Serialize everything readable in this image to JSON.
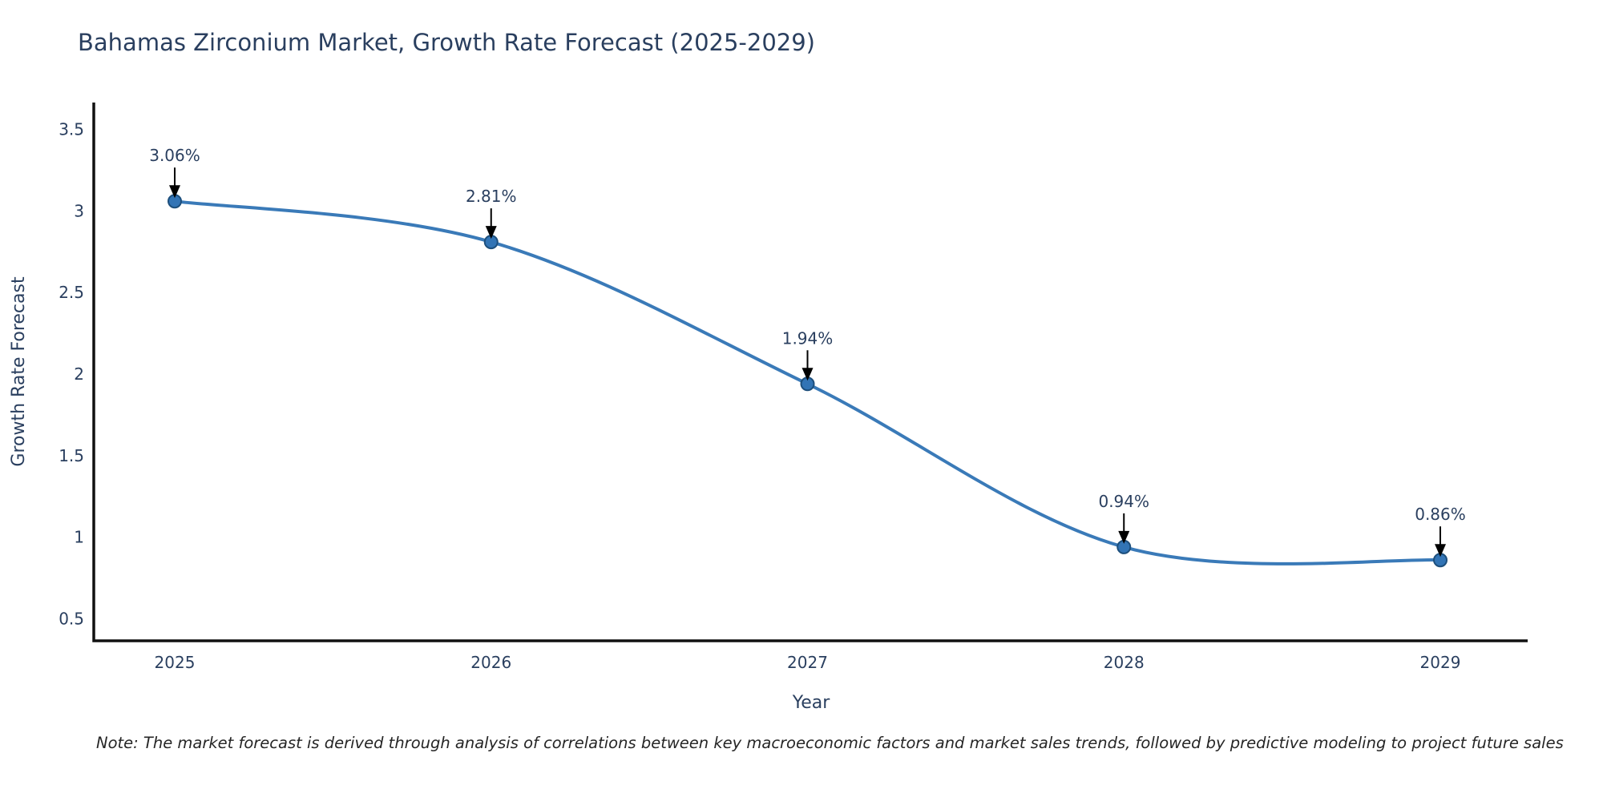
{
  "header": {
    "title": "Bahamas Zirconium Market, Growth Rate Forecast (2025-2029)"
  },
  "footer": {
    "note": "Note: The market forecast is derived through analysis of correlations between key macroeconomic factors and market sales trends, followed by predictive modeling to project future sales"
  },
  "chart_data": {
    "type": "line",
    "title": "Bahamas Zirconium Market, Growth Rate Forecast (2025-2029)",
    "xlabel": "Year",
    "ylabel": "Growth Rate Forecast",
    "x": [
      2025,
      2026,
      2027,
      2028,
      2029
    ],
    "xticklabels": [
      "2025",
      "2026",
      "2027",
      "2028",
      "2029"
    ],
    "values": [
      3.06,
      2.81,
      1.94,
      0.94,
      0.86
    ],
    "point_labels": [
      "3.06%",
      "2.81%",
      "1.94%",
      "0.94%",
      "0.86%"
    ],
    "series_name": "Growth Rate Forecast",
    "yticks": [
      0.5,
      1,
      1.5,
      2,
      2.5,
      3,
      3.5
    ],
    "ytick_labels": [
      "0.5",
      "1",
      "1.5",
      "2",
      "2.5",
      "3",
      "3.5"
    ],
    "ylim": [
      0.365,
      3.665
    ],
    "line_shape": "spline",
    "grid": false,
    "legend": "none",
    "annotation_style": "label-with-down-arrow",
    "colors": {
      "line": "#3a7ab8",
      "marker_fill": "#3274b5",
      "marker_edge": "#1d4f7c",
      "axis_text": "#2a3f5f",
      "title_text": "#2a3f5f",
      "annotation_text": "#2a3f5f",
      "annotation_arrow": "#000000",
      "spine": "#111111",
      "note_text": "#262626",
      "background": "#ffffff"
    }
  }
}
